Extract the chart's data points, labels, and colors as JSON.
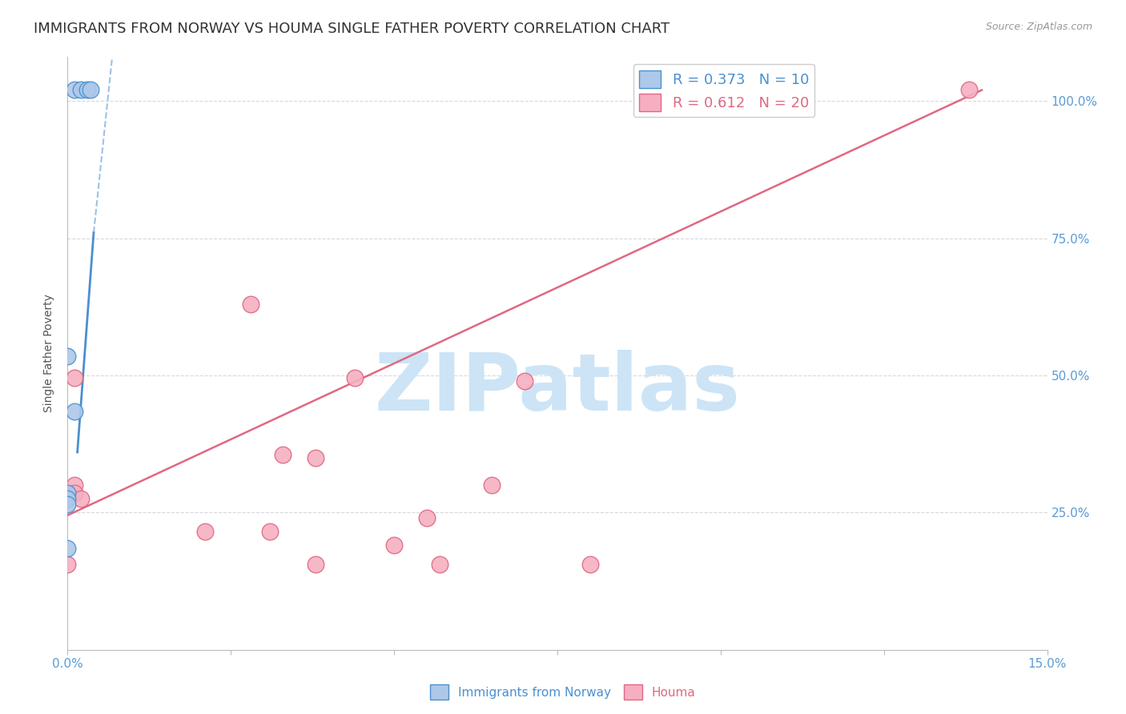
{
  "title": "IMMIGRANTS FROM NORWAY VS HOUMA SINGLE FATHER POVERTY CORRELATION CHART",
  "source": "Source: ZipAtlas.com",
  "ylabel": "Single Father Poverty",
  "xlim": [
    0.0,
    0.15
  ],
  "ylim": [
    0.0,
    1.08
  ],
  "xticks": [
    0.0,
    0.025,
    0.05,
    0.075,
    0.1,
    0.125,
    0.15
  ],
  "xticklabels_show": [
    "0.0%",
    "15.0%"
  ],
  "yticks_right": [
    0.25,
    0.5,
    0.75,
    1.0
  ],
  "yticklabels_right": [
    "25.0%",
    "50.0%",
    "75.0%",
    "100.0%"
  ],
  "legend_r1": "R = 0.373",
  "legend_n1": "N = 10",
  "legend_r2": "R = 0.612",
  "legend_n2": "N = 20",
  "blue_color": "#adc8e8",
  "pink_color": "#f5afc0",
  "blue_edge_color": "#4a90d0",
  "pink_edge_color": "#e06882",
  "blue_scatter": [
    [
      0.001,
      1.02
    ],
    [
      0.002,
      1.02
    ],
    [
      0.003,
      1.02
    ],
    [
      0.0035,
      1.02
    ],
    [
      0.0,
      0.535
    ],
    [
      0.001,
      0.435
    ],
    [
      0.0,
      0.285
    ],
    [
      0.0,
      0.275
    ],
    [
      0.0,
      0.265
    ],
    [
      0.0,
      0.185
    ]
  ],
  "pink_scatter": [
    [
      0.101,
      1.02
    ],
    [
      0.138,
      1.02
    ],
    [
      0.001,
      0.495
    ],
    [
      0.028,
      0.63
    ],
    [
      0.001,
      0.3
    ],
    [
      0.001,
      0.285
    ],
    [
      0.002,
      0.275
    ],
    [
      0.033,
      0.355
    ],
    [
      0.021,
      0.215
    ],
    [
      0.031,
      0.215
    ],
    [
      0.0,
      0.155
    ],
    [
      0.044,
      0.495
    ],
    [
      0.055,
      0.24
    ],
    [
      0.038,
      0.35
    ],
    [
      0.038,
      0.155
    ],
    [
      0.057,
      0.155
    ],
    [
      0.05,
      0.19
    ],
    [
      0.065,
      0.3
    ],
    [
      0.07,
      0.49
    ],
    [
      0.08,
      0.155
    ]
  ],
  "blue_trendline_solid": [
    [
      0.0015,
      0.36
    ],
    [
      0.004,
      0.76
    ]
  ],
  "blue_trendline_dashed": [
    [
      0.004,
      0.76
    ],
    [
      0.011,
      1.55
    ]
  ],
  "pink_trendline": [
    [
      0.0,
      0.245
    ],
    [
      0.14,
      1.02
    ]
  ],
  "watermark": "ZIPatlas",
  "watermark_color": "#cce4f6",
  "background_color": "#ffffff",
  "grid_color": "#d8d8d8",
  "tick_color": "#5b9bd5",
  "title_fontsize": 13,
  "axis_label_fontsize": 10,
  "tick_fontsize": 11,
  "legend_fontsize": 13
}
